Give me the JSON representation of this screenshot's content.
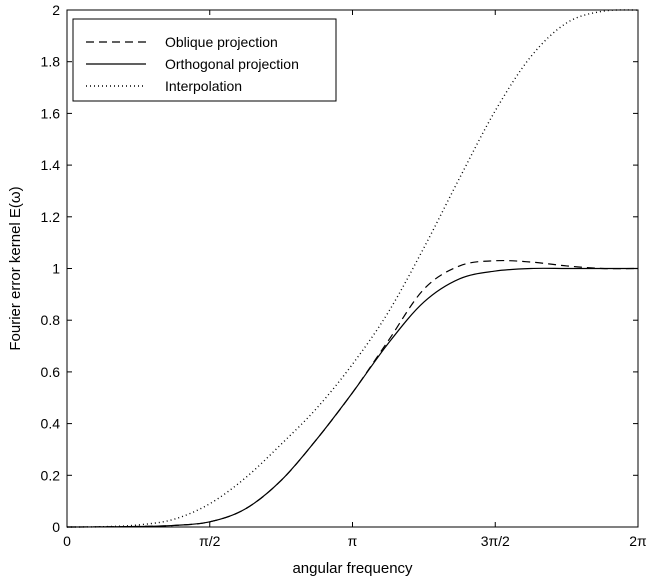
{
  "chart_data": {
    "type": "line",
    "title": "",
    "xlabel": "angular frequency",
    "ylabel": "Fourier error kernel E(ω)",
    "xlim": [
      0,
      6.283185
    ],
    "ylim": [
      0,
      2
    ],
    "x_ticks": [
      {
        "value": 0,
        "label": "0"
      },
      {
        "value": 1.570796,
        "label": "π/2"
      },
      {
        "value": 3.141593,
        "label": "π"
      },
      {
        "value": 4.712389,
        "label": "3π/2"
      },
      {
        "value": 6.283185,
        "label": "2π"
      }
    ],
    "y_ticks": [
      {
        "value": 0,
        "label": "0"
      },
      {
        "value": 0.2,
        "label": "0.2"
      },
      {
        "value": 0.4,
        "label": "0.4"
      },
      {
        "value": 0.6,
        "label": "0.6"
      },
      {
        "value": 0.8,
        "label": "0.8"
      },
      {
        "value": 1,
        "label": "1"
      },
      {
        "value": 1.2,
        "label": "1.2"
      },
      {
        "value": 1.4,
        "label": "1.4"
      },
      {
        "value": 1.6,
        "label": "1.6"
      },
      {
        "value": 1.8,
        "label": "1.8"
      },
      {
        "value": 2,
        "label": "2"
      }
    ],
    "grid": false,
    "legend_position": "top-left",
    "series": [
      {
        "name": "Oblique projection",
        "style": "dashed",
        "color": "#000000",
        "x": [
          0,
          0.393,
          0.785,
          1.178,
          1.571,
          1.963,
          2.356,
          2.749,
          3.142,
          3.534,
          3.927,
          4.32,
          4.712,
          5.105,
          5.498,
          5.89,
          6.283
        ],
        "y": [
          0,
          0.0005,
          0.002,
          0.006,
          0.02,
          0.07,
          0.18,
          0.34,
          0.52,
          0.72,
          0.92,
          1.01,
          1.03,
          1.025,
          1.01,
          1.0,
          1.0
        ]
      },
      {
        "name": "Orthogonal projection",
        "style": "solid",
        "color": "#000000",
        "x": [
          0,
          0.393,
          0.785,
          1.178,
          1.571,
          1.963,
          2.356,
          2.749,
          3.142,
          3.534,
          3.927,
          4.32,
          4.712,
          5.105,
          5.498,
          5.89,
          6.283
        ],
        "y": [
          0,
          0.0005,
          0.002,
          0.006,
          0.02,
          0.07,
          0.18,
          0.34,
          0.52,
          0.71,
          0.87,
          0.96,
          0.99,
          1.0,
          1.0,
          1.0,
          1.0
        ]
      },
      {
        "name": "Interpolation",
        "style": "dotted",
        "color": "#000000",
        "x": [
          0,
          0.393,
          0.785,
          1.178,
          1.571,
          1.963,
          2.356,
          2.749,
          3.142,
          3.534,
          3.927,
          4.32,
          4.712,
          5.105,
          5.498,
          5.89,
          6.283
        ],
        "y": [
          0,
          0.001,
          0.008,
          0.03,
          0.09,
          0.19,
          0.32,
          0.46,
          0.63,
          0.83,
          1.08,
          1.35,
          1.61,
          1.82,
          1.95,
          1.995,
          2.0
        ]
      }
    ]
  }
}
